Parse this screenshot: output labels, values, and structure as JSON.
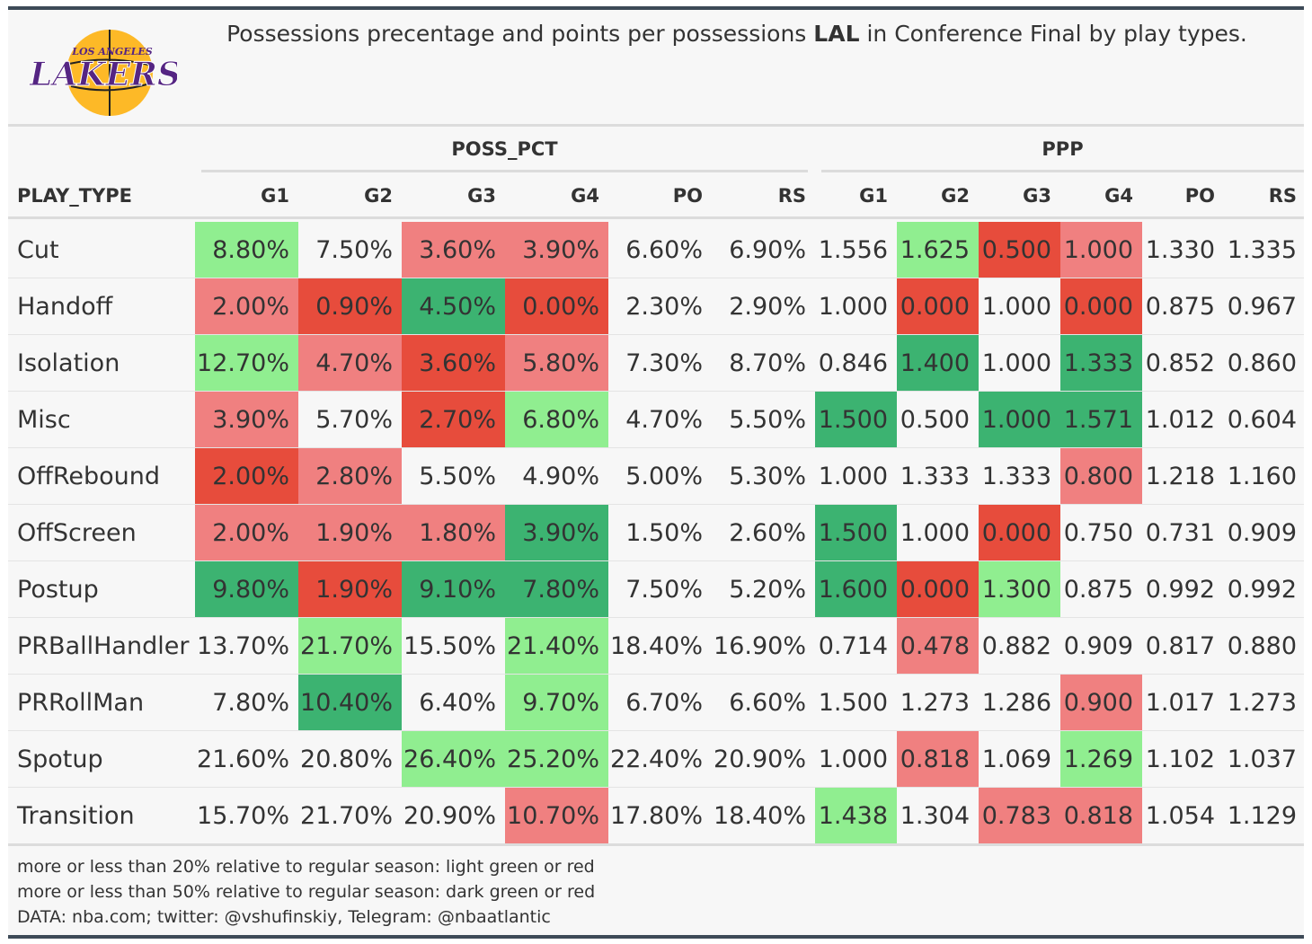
{
  "title": {
    "before": "Possessions precentage and points per possessions ",
    "team": "LAL",
    "after": " in Conference Final by play types."
  },
  "logo": {
    "line1": "LOS ANGELES",
    "line2": "LAKERS",
    "colors": {
      "purple": "#552583",
      "gold": "#FDB927"
    }
  },
  "colors": {
    "light_green": "#90EE90",
    "dark_green": "#3CB371",
    "light_red": "#F08080",
    "dark_red": "#E74C3C",
    "neutral": "#f7f7f7"
  },
  "chart_data": {
    "type": "table",
    "groups": [
      "POSS_PCT",
      "PPP"
    ],
    "columns": [
      "PLAY_TYPE",
      "G1",
      "G2",
      "G3",
      "G4",
      "PO",
      "RS",
      "G1",
      "G2",
      "G3",
      "G4",
      "PO",
      "RS"
    ],
    "rows": [
      {
        "play_type": "Cut",
        "values": [
          "8.80%",
          "7.50%",
          "3.60%",
          "3.90%",
          "6.60%",
          "6.90%",
          "1.556",
          "1.625",
          "0.500",
          "1.000",
          "1.330",
          "1.335"
        ],
        "shade": [
          "lg",
          "",
          "lr",
          "lr",
          "",
          "",
          "",
          "lg",
          "dr",
          "lr",
          "",
          ""
        ]
      },
      {
        "play_type": "Handoff",
        "values": [
          "2.00%",
          "0.90%",
          "4.50%",
          "0.00%",
          "2.30%",
          "2.90%",
          "1.000",
          "0.000",
          "1.000",
          "0.000",
          "0.875",
          "0.967"
        ],
        "shade": [
          "lr",
          "dr",
          "dg",
          "dr",
          "",
          "",
          "",
          "dr",
          "",
          "dr",
          "",
          ""
        ]
      },
      {
        "play_type": "Isolation",
        "values": [
          "12.70%",
          "4.70%",
          "3.60%",
          "5.80%",
          "7.30%",
          "8.70%",
          "0.846",
          "1.400",
          "1.000",
          "1.333",
          "0.852",
          "0.860"
        ],
        "shade": [
          "lg",
          "lr",
          "dr",
          "lr",
          "",
          "",
          "",
          "dg",
          "",
          "dg",
          "",
          ""
        ]
      },
      {
        "play_type": "Misc",
        "values": [
          "3.90%",
          "5.70%",
          "2.70%",
          "6.80%",
          "4.70%",
          "5.50%",
          "1.500",
          "0.500",
          "1.000",
          "1.571",
          "1.012",
          "0.604"
        ],
        "shade": [
          "lr",
          "",
          "dr",
          "lg",
          "",
          "",
          "dg",
          "",
          "dg",
          "dg",
          "",
          ""
        ]
      },
      {
        "play_type": "OffRebound",
        "values": [
          "2.00%",
          "2.80%",
          "5.50%",
          "4.90%",
          "5.00%",
          "5.30%",
          "1.000",
          "1.333",
          "1.333",
          "0.800",
          "1.218",
          "1.160"
        ],
        "shade": [
          "dr",
          "lr",
          "",
          "",
          "",
          "",
          "",
          "",
          "",
          "lr",
          "",
          ""
        ]
      },
      {
        "play_type": "OffScreen",
        "values": [
          "2.00%",
          "1.90%",
          "1.80%",
          "3.90%",
          "1.50%",
          "2.60%",
          "1.500",
          "1.000",
          "0.000",
          "0.750",
          "0.731",
          "0.909"
        ],
        "shade": [
          "lr",
          "lr",
          "lr",
          "dg",
          "",
          "",
          "dg",
          "",
          "dr",
          "",
          "",
          ""
        ]
      },
      {
        "play_type": "Postup",
        "values": [
          "9.80%",
          "1.90%",
          "9.10%",
          "7.80%",
          "7.50%",
          "5.20%",
          "1.600",
          "0.000",
          "1.300",
          "0.875",
          "0.992",
          "0.992"
        ],
        "shade": [
          "dg",
          "dr",
          "dg",
          "dg",
          "",
          "",
          "dg",
          "dr",
          "lg",
          "",
          "",
          ""
        ]
      },
      {
        "play_type": "PRBallHandler",
        "values": [
          "13.70%",
          "21.70%",
          "15.50%",
          "21.40%",
          "18.40%",
          "16.90%",
          "0.714",
          "0.478",
          "0.882",
          "0.909",
          "0.817",
          "0.880"
        ],
        "shade": [
          "",
          "lg",
          "",
          "lg",
          "",
          "",
          "",
          "lr",
          "",
          "",
          "",
          ""
        ]
      },
      {
        "play_type": "PRRollMan",
        "values": [
          "7.80%",
          "10.40%",
          "6.40%",
          "9.70%",
          "6.70%",
          "6.60%",
          "1.500",
          "1.273",
          "1.286",
          "0.900",
          "1.017",
          "1.273"
        ],
        "shade": [
          "",
          "dg",
          "",
          "lg",
          "",
          "",
          "",
          "",
          "",
          "lr",
          "",
          ""
        ]
      },
      {
        "play_type": "Spotup",
        "values": [
          "21.60%",
          "20.80%",
          "26.40%",
          "25.20%",
          "22.40%",
          "20.90%",
          "1.000",
          "0.818",
          "1.069",
          "1.269",
          "1.102",
          "1.037"
        ],
        "shade": [
          "",
          "",
          "lg",
          "lg",
          "",
          "",
          "",
          "lr",
          "",
          "lg",
          "",
          ""
        ]
      },
      {
        "play_type": "Transition",
        "values": [
          "15.70%",
          "21.70%",
          "20.90%",
          "10.70%",
          "17.80%",
          "18.40%",
          "1.438",
          "1.304",
          "0.783",
          "0.818",
          "1.054",
          "1.129"
        ],
        "shade": [
          "",
          "",
          "",
          "lr",
          "",
          "",
          "lg",
          "",
          "lr",
          "lr",
          "",
          ""
        ]
      }
    ]
  },
  "footer": {
    "line1": "more or less than 20% relative to regular season: light green or red",
    "line2": "more or less than 50% relative to regular season: dark green or red",
    "line3": "DATA: nba.com; twitter: @vshufinskiy, Telegram: @nbaatlantic"
  }
}
